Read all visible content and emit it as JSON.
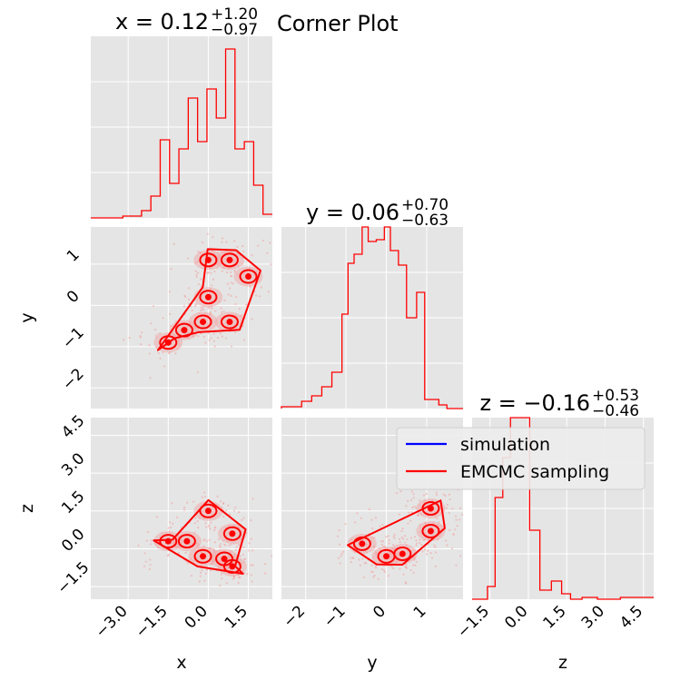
{
  "figure": {
    "title": "Corner Plot"
  },
  "colors": {
    "panel_bg": "#e5e5e5",
    "grid": "#ffffff",
    "mcmc": "#ff0000",
    "simulation": "#0000ff",
    "scatter": "#f2a0a0"
  },
  "legend": {
    "placement": "upper right of z-histogram area",
    "entries": [
      {
        "label": "simulation",
        "color": "#0000ff"
      },
      {
        "label": "EMCMC sampling",
        "color": "#ff0000"
      }
    ]
  },
  "chart_data": [
    {
      "type": "histogram",
      "panel": "x-marginal",
      "title": {
        "main": "x = 0.12",
        "sup": "+1.20",
        "sub": "−0.97"
      },
      "xlim": [
        -4.4,
        2.4
      ],
      "ylim": [
        0,
        1
      ],
      "bin_edges": [
        -4.4,
        -3.8,
        -3.2,
        -2.85,
        -2.5,
        -2.15,
        -1.8,
        -1.45,
        -1.1,
        -0.75,
        -0.4,
        -0.05,
        0.3,
        0.65,
        1.0,
        1.35,
        1.7,
        2.05,
        2.4
      ],
      "heights": [
        0.0,
        0.0,
        0.01,
        0.01,
        0.04,
        0.12,
        0.43,
        0.19,
        0.38,
        0.66,
        0.42,
        0.71,
        0.55,
        0.93,
        0.38,
        0.42,
        0.18,
        0.02
      ],
      "show_axis_ticks": false
    },
    {
      "type": "histogram",
      "panel": "y-marginal",
      "title": {
        "main": "y = 0.06",
        "sup": "+0.70",
        "sub": "−0.63"
      },
      "xlim": [
        -2.6,
        1.9
      ],
      "ylim": [
        0,
        1
      ],
      "bin_edges": [
        -2.6,
        -2.1,
        -1.85,
        -1.6,
        -1.35,
        -1.1,
        -0.95,
        -0.8,
        -0.6,
        -0.45,
        -0.25,
        -0.05,
        0.1,
        0.3,
        0.5,
        0.75,
        0.95,
        1.3,
        1.5,
        1.9
      ],
      "heights": [
        0.01,
        0.04,
        0.07,
        0.12,
        0.2,
        0.52,
        0.8,
        0.85,
        1.0,
        0.92,
        0.93,
        1.0,
        0.87,
        0.79,
        0.5,
        0.64,
        0.05,
        0.02,
        0.0
      ],
      "show_axis_ticks": false
    },
    {
      "type": "histogram",
      "panel": "z-marginal",
      "title": {
        "main": "z = −0.16",
        "sup": "+0.53",
        "sub": "−0.46"
      },
      "xlim": [
        -2.2,
        4.9
      ],
      "ylim": [
        0,
        1
      ],
      "bin_edges": [
        -2.2,
        -1.6,
        -1.3,
        -1.0,
        -0.7,
        -0.3,
        0.05,
        0.45,
        0.9,
        1.3,
        1.65,
        2.1,
        2.7,
        3.6,
        4.9
      ],
      "heights": [
        0.0,
        0.07,
        0.56,
        0.78,
        1.0,
        1.0,
        0.38,
        0.05,
        0.1,
        0.03,
        0.0,
        0.01,
        0.0,
        0.01
      ],
      "show_axis_ticks": false,
      "xlabel": "z",
      "xticks": [
        -1.5,
        0.0,
        1.5,
        3.0,
        4.5
      ],
      "xtick_labels": [
        "−1.5",
        "0.0",
        "1.5",
        "3.0",
        "4.5"
      ]
    },
    {
      "type": "scatter",
      "panel": "x-y-joint",
      "xlim": [
        -4.4,
        2.4
      ],
      "ylim": [
        -2.5,
        1.9
      ],
      "ylabel": "y",
      "yticks": [
        -2,
        -1,
        0,
        1
      ],
      "ytick_labels": [
        "−2",
        "−1",
        "0",
        "1"
      ],
      "cluster_center": [
        0.2,
        0.0
      ],
      "contour_peaks": [
        [
          -1.5,
          -0.9
        ],
        [
          -0.9,
          -0.6
        ],
        [
          -0.2,
          -0.4
        ],
        [
          0.0,
          0.2
        ],
        [
          0.8,
          -0.4
        ],
        [
          1.5,
          0.7
        ],
        [
          0.0,
          1.1
        ],
        [
          0.8,
          1.1
        ]
      ]
    },
    {
      "type": "scatter",
      "panel": "x-z-joint",
      "xlim": [
        -4.4,
        2.4
      ],
      "ylim": [
        -2.0,
        5.2
      ],
      "xlabel": "x",
      "ylabel": "z",
      "xticks": [
        -3.0,
        -1.5,
        0.0,
        1.5
      ],
      "xtick_labels": [
        "−3.0",
        "−1.5",
        "0.0",
        "1.5"
      ],
      "yticks": [
        -1.5,
        0.0,
        1.5,
        3.0,
        4.5
      ],
      "ytick_labels": [
        "−1.5",
        "0.0",
        "1.5",
        "3.0",
        "4.5"
      ],
      "contour_peaks": [
        [
          -1.5,
          0.3
        ],
        [
          -0.8,
          0.3
        ],
        [
          -0.2,
          -0.3
        ],
        [
          0.6,
          -0.4
        ],
        [
          0.9,
          0.6
        ],
        [
          0.9,
          -0.7
        ],
        [
          0.0,
          1.5
        ]
      ]
    },
    {
      "type": "scatter",
      "panel": "y-z-joint",
      "xlim": [
        -2.6,
        1.9
      ],
      "ylim": [
        -2.0,
        5.2
      ],
      "xlabel": "y",
      "xticks": [
        -2,
        -1,
        0,
        1
      ],
      "xtick_labels": [
        "−2",
        "−1",
        "0",
        "1"
      ],
      "contour_peaks": [
        [
          -0.6,
          0.2
        ],
        [
          0.0,
          -0.3
        ],
        [
          0.4,
          -0.2
        ],
        [
          1.1,
          0.7
        ],
        [
          1.1,
          1.6
        ]
      ]
    }
  ]
}
